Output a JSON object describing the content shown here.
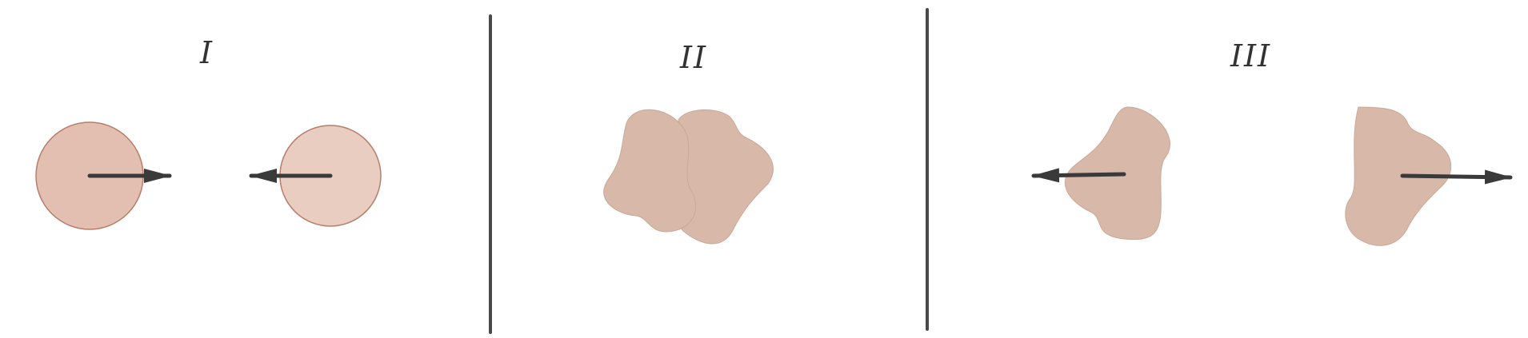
{
  "panels": [
    {
      "label": "I"
    },
    {
      "label": "II"
    },
    {
      "label": "III"
    }
  ],
  "colors": {
    "background": "#ffffff",
    "divider": "#4a4a4a",
    "arrow": "#3a3a3a",
    "circle_left_fill": "#e2bfb0",
    "circle_right_fill": "#e9cdc1",
    "circle_stroke": "#b87d6a",
    "blob_fill": "#d7b8a9",
    "blob_stroke": "#c9a898"
  }
}
